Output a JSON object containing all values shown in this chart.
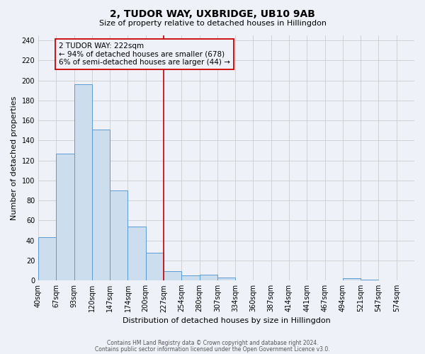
{
  "title": "2, TUDOR WAY, UXBRIDGE, UB10 9AB",
  "subtitle": "Size of property relative to detached houses in Hillingdon",
  "xlabel": "Distribution of detached houses by size in Hillingdon",
  "ylabel": "Number of detached properties",
  "footer_lines": [
    "Contains HM Land Registry data © Crown copyright and database right 2024.",
    "Contains public sector information licensed under the Open Government Licence v3.0."
  ],
  "bin_labels": [
    "40sqm",
    "67sqm",
    "93sqm",
    "120sqm",
    "147sqm",
    "174sqm",
    "200sqm",
    "227sqm",
    "254sqm",
    "280sqm",
    "307sqm",
    "334sqm",
    "360sqm",
    "387sqm",
    "414sqm",
    "441sqm",
    "467sqm",
    "494sqm",
    "521sqm",
    "547sqm",
    "574sqm"
  ],
  "bin_values": [
    43,
    127,
    196,
    151,
    90,
    54,
    28,
    9,
    5,
    6,
    3,
    0,
    0,
    0,
    0,
    0,
    0,
    2,
    1,
    0,
    0
  ],
  "bar_color": "#ccdded",
  "bar_edge_color": "#5b9bd5",
  "grid_color": "#cccccc",
  "bg_color": "#eef2f8",
  "annotation_text_line1": "2 TUDOR WAY: 222sqm",
  "annotation_text_line2": "← 94% of detached houses are smaller (678)",
  "annotation_text_line3": "6% of semi-detached houses are larger (44) →",
  "vline_color": "#cc0000",
  "box_edge_color": "#cc0000",
  "ylim": [
    0,
    245
  ],
  "yticks": [
    0,
    20,
    40,
    60,
    80,
    100,
    120,
    140,
    160,
    180,
    200,
    220,
    240
  ],
  "vline_x": 7.0,
  "title_fontsize": 10,
  "subtitle_fontsize": 8,
  "ylabel_fontsize": 8,
  "xlabel_fontsize": 8,
  "tick_fontsize": 7,
  "annotation_fontsize": 7.5
}
